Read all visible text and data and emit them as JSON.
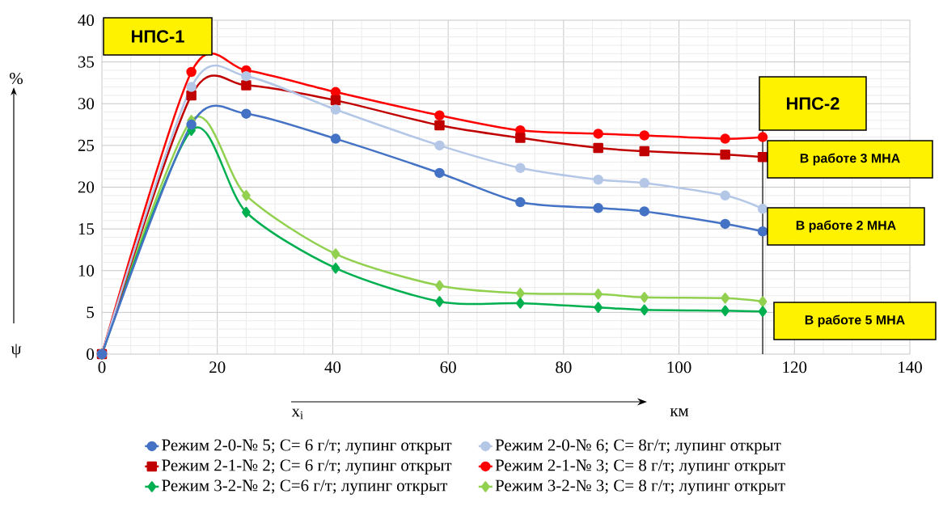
{
  "chart_data": {
    "type": "line",
    "xlabel": "x$_{i}$",
    "ylabel": "ψ",
    "annotations": [
      "НПС-1",
      "НПС-2",
      "В работе 3 МНА",
      "В работе 2 МНА",
      "В работе 5 МНА",
      "%",
      "км"
    ],
    "x": [
      0,
      15.5,
      25,
      40.5,
      58.5,
      72.5,
      86,
      94,
      108,
      114.5
    ],
    "series": [
      {
        "name": "Режим 2-0-№ 5; С= 6 г/т; лупинг открыт",
        "color": "#4472c4",
        "marker": "circle",
        "values": [
          0,
          27.5,
          28.8,
          25.8,
          21.7,
          18.2,
          17.5,
          17.1,
          15.6,
          14.7
        ]
      },
      {
        "name": "Режим 2-0-№ 6; С= 8г/т; лупинг открыт",
        "color": "#b4c7e7",
        "marker": "circle",
        "values": [
          0,
          32.0,
          33.3,
          29.3,
          25.0,
          22.3,
          20.9,
          20.5,
          19.0,
          17.4
        ]
      },
      {
        "name": "Режим 2-1-№ 2; С= 6 г/т; лупинг открыт",
        "color": "#c00000",
        "marker": "square",
        "values": [
          0,
          31.0,
          32.2,
          30.4,
          27.4,
          25.9,
          24.7,
          24.3,
          23.9,
          23.6
        ]
      },
      {
        "name": "Режим 2-1-№ 3; С= 8 г/т; лупинг открыт",
        "color": "#ff0000",
        "marker": "circle",
        "values": [
          0,
          33.8,
          34.0,
          31.4,
          28.6,
          26.8,
          26.4,
          26.2,
          25.8,
          26.0
        ]
      },
      {
        "name": "Режим 3-2-№ 2; С=6 г/т; лупинг открыт",
        "color": "#00b050",
        "marker": "diamond",
        "values": [
          0,
          26.8,
          17.0,
          10.3,
          6.3,
          6.1,
          5.6,
          5.3,
          5.2,
          5.1
        ]
      },
      {
        "name": "Режим 3-2-№ 3; С= 8 г/т; лупинг открыт",
        "color": "#92d050",
        "marker": "diamond",
        "values": [
          0,
          28.0,
          19.0,
          12.0,
          8.2,
          7.3,
          7.2,
          6.8,
          6.7,
          6.3
        ]
      }
    ],
    "xlim": [
      0,
      140
    ],
    "ylim": [
      0,
      40
    ],
    "xticks": [
      0,
      20,
      40,
      60,
      80,
      100,
      120,
      140
    ],
    "yticks": [
      0,
      5,
      10,
      15,
      20,
      25,
      30,
      35,
      40
    ],
    "ref_lines": [
      {
        "axis": "x",
        "value": 114.5,
        "color": "#000000"
      }
    ],
    "grid": true,
    "legend": "bottom",
    "line_style": "solid"
  }
}
